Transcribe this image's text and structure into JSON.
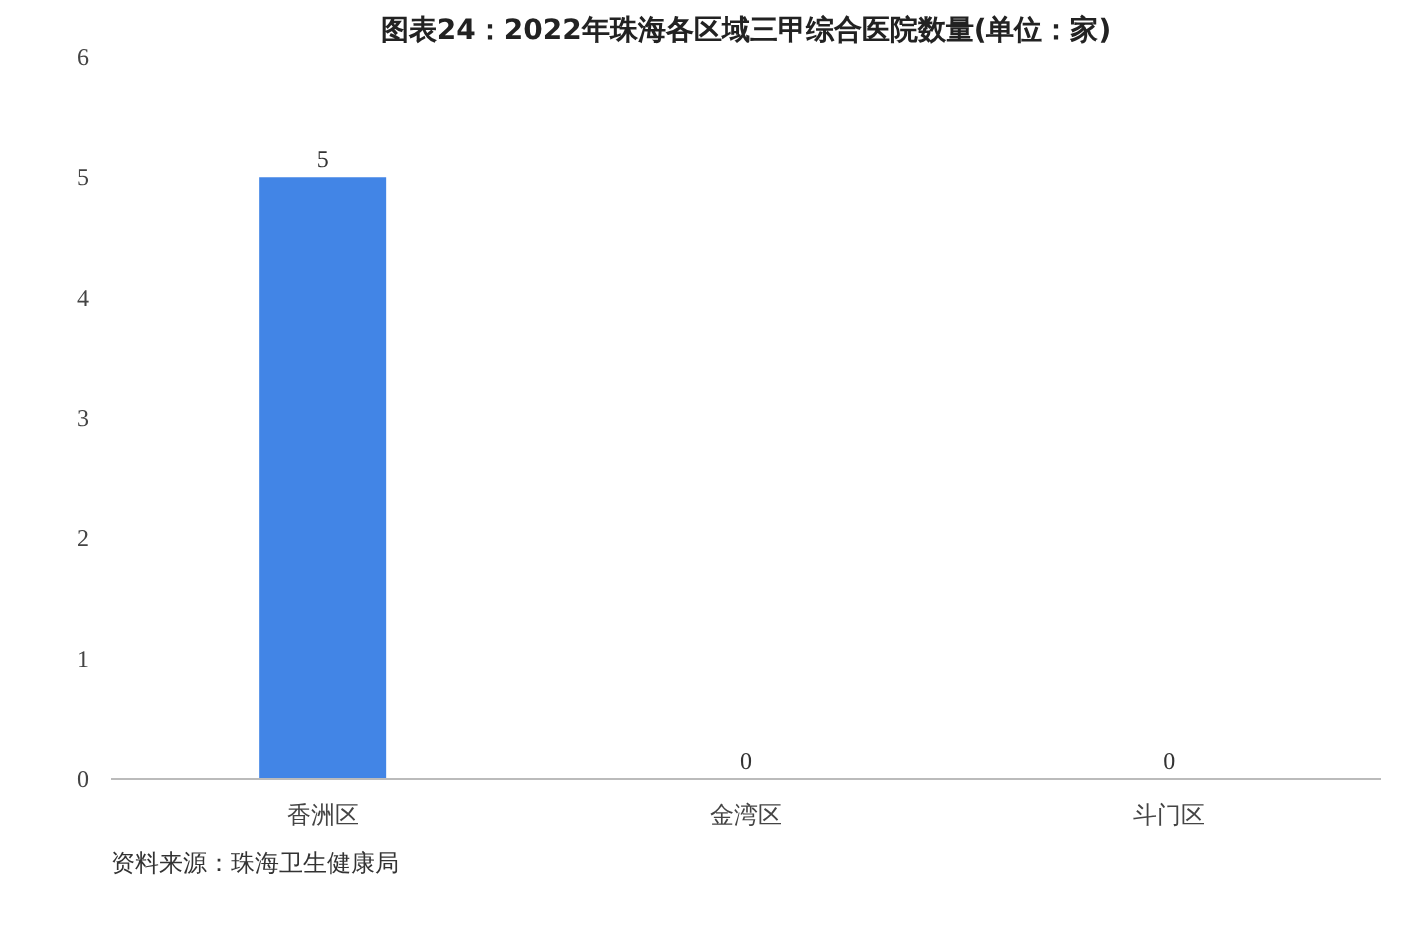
{
  "chart_data": {
    "type": "bar",
    "title": "图表24：2022年珠海各区域三甲综合医院数量(单位：家)",
    "categories": [
      "香洲区",
      "金湾区",
      "斗门区"
    ],
    "values": [
      5,
      0,
      0
    ],
    "color": "#4285e6",
    "ylim": [
      0,
      6
    ],
    "yticks": [
      0,
      1,
      2,
      3,
      4,
      5,
      6
    ],
    "grid": false,
    "data_labels": true,
    "annotations": [
      "资料来源：珠海卫生健康局"
    ]
  }
}
